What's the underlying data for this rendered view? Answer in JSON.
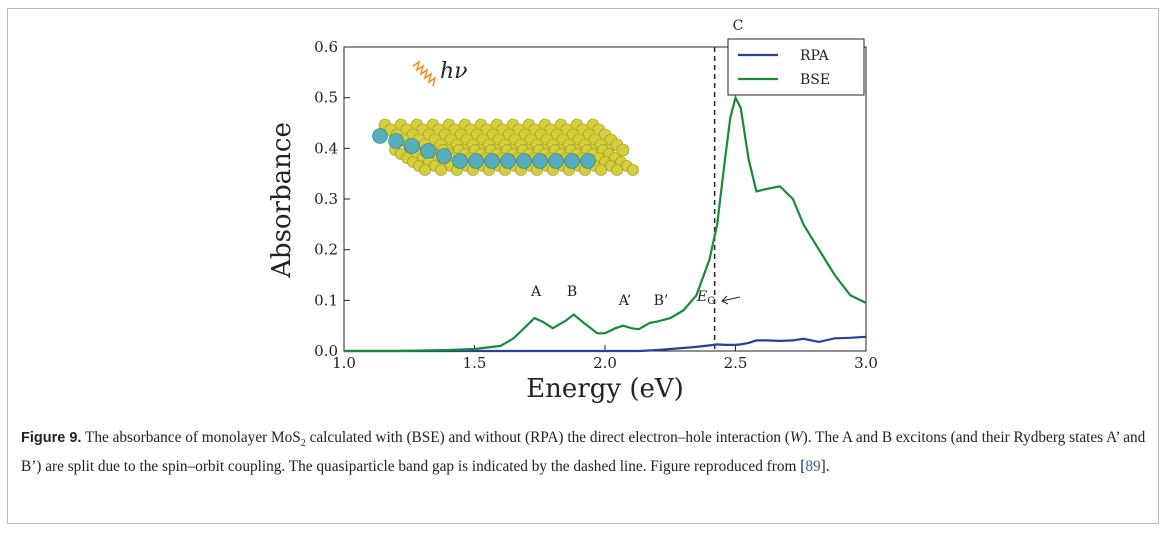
{
  "chart_data": {
    "type": "line",
    "xlabel": "Energy (eV)",
    "ylabel": "Absorbance",
    "xlim": [
      1.0,
      3.0
    ],
    "ylim": [
      0.0,
      0.6
    ],
    "xticks": [
      {
        "value": 1.0,
        "label": "1.0"
      },
      1.5,
      {
        "value": 2.0,
        "label": "2.0"
      },
      2.5,
      {
        "value": 3.0,
        "label": "3.0"
      }
    ],
    "yticks": [
      {
        "value": 0.0,
        "label": "0.0"
      },
      0.1,
      0.2,
      0.3,
      0.4,
      0.5,
      0.6
    ],
    "legend": "upper right",
    "x": [
      1.0,
      1.2,
      1.4,
      1.5,
      1.6,
      1.65,
      1.7,
      1.73,
      1.76,
      1.8,
      1.85,
      1.88,
      1.92,
      1.97,
      2.0,
      2.04,
      2.07,
      2.1,
      2.13,
      2.17,
      2.2,
      2.25,
      2.3,
      2.35,
      2.4,
      2.43,
      2.46,
      2.48,
      2.5,
      2.52,
      2.55,
      2.58,
      2.62,
      2.67,
      2.72,
      2.76,
      2.82,
      2.88,
      2.94,
      3.0
    ],
    "series": [
      {
        "name": "RPA",
        "color": "#2e3d96",
        "values": [
          0,
          0,
          0,
          0,
          0,
          0,
          0,
          0,
          0,
          0,
          0,
          0,
          0,
          0,
          0,
          0,
          0,
          0,
          0,
          0.001,
          0.002,
          0.004,
          0.006,
          0.008,
          0.011,
          0.013,
          0.012,
          0.012,
          0.012,
          0.013,
          0.016,
          0.021,
          0.021,
          0.02,
          0.021,
          0.024,
          0.018,
          0.025,
          0.026,
          0.028
        ]
      },
      {
        "name": "BSE",
        "color": "#19893a",
        "values": [
          0,
          0,
          0.002,
          0.004,
          0.01,
          0.025,
          0.05,
          0.065,
          0.058,
          0.045,
          0.06,
          0.072,
          0.055,
          0.035,
          0.035,
          0.045,
          0.05,
          0.045,
          0.043,
          0.055,
          0.058,
          0.065,
          0.08,
          0.11,
          0.18,
          0.25,
          0.38,
          0.46,
          0.5,
          0.48,
          0.38,
          0.315,
          0.32,
          0.325,
          0.3,
          0.25,
          0.2,
          0.15,
          0.11,
          0.095
        ]
      }
    ],
    "gap_energy": 2.42,
    "annotations": [
      "A",
      "B",
      "A’",
      "B’",
      "C"
    ],
    "gap_symbol": "E",
    "gap_subscript": "G",
    "inset_label": "hν"
  },
  "caption": {
    "label": "Figure 9.",
    "text_1": " The absorbance of monolayer MoS",
    "sub": "2",
    "text_2": " calculated with (BSE) and without (RPA) the direct electron–hole interaction (",
    "italic": "W",
    "text_3": "). The A and B excitons (and their Rydberg states A’ and B’) are split due to the spin–orbit coupling. The quasiparticle band gap is indicated by the dashed line. Figure reproduced from [",
    "ref": "89",
    "text_4": "]."
  }
}
